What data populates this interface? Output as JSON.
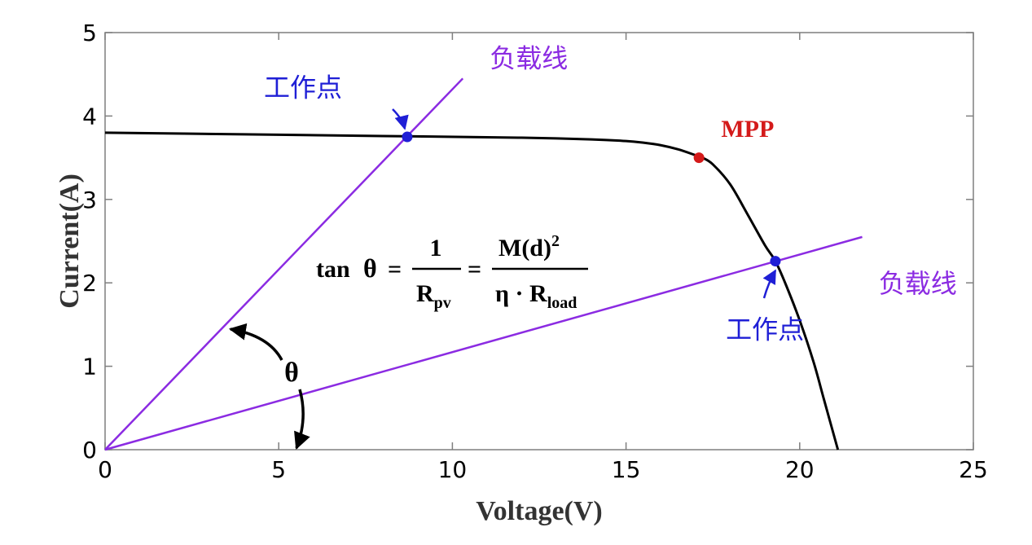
{
  "chart_data": {
    "type": "line",
    "xlabel": "Voltage(V)",
    "ylabel": "Current(A)",
    "xlim": [
      0,
      25
    ],
    "ylim": [
      0,
      5
    ],
    "xticks": [
      0,
      5,
      10,
      15,
      20,
      25
    ],
    "yticks": [
      0,
      1,
      2,
      3,
      4,
      5
    ],
    "grid": false,
    "colors": {
      "iv_curve": "#000000",
      "load_line": "#8b2be2",
      "operating_point": "#1f1fd6",
      "mpp": "#d41a1a",
      "text_blue": "#1f1fd6",
      "text_purple": "#8b2be2"
    },
    "series": [
      {
        "type": "curve",
        "color_key": "iv_curve",
        "x": [
          0,
          4,
          8,
          12,
          14,
          15,
          15.5,
          16,
          16.5,
          17,
          17.2,
          17.5,
          18,
          18.5,
          19,
          19.3,
          19.6,
          20,
          20.4,
          20.7,
          21.1
        ],
        "y": [
          3.8,
          3.78,
          3.76,
          3.74,
          3.72,
          3.7,
          3.68,
          3.65,
          3.6,
          3.53,
          3.5,
          3.42,
          3.18,
          2.82,
          2.45,
          2.26,
          1.98,
          1.55,
          1.05,
          0.6,
          0.0
        ]
      },
      {
        "type": "load-line",
        "label": "负载线",
        "color_key": "load_line",
        "x": [
          0,
          10.3
        ],
        "y": [
          0,
          4.45
        ]
      },
      {
        "type": "load-line",
        "label": "负载线",
        "color_key": "load_line",
        "x": [
          0,
          21.8
        ],
        "y": [
          0,
          2.55
        ]
      }
    ],
    "points": [
      {
        "name": "operating-point-1",
        "x": 8.7,
        "y": 3.75,
        "color_key": "operating_point"
      },
      {
        "name": "mpp-point",
        "x": 17.1,
        "y": 3.5,
        "color_key": "mpp"
      },
      {
        "name": "operating-point-2",
        "x": 19.3,
        "y": 2.26,
        "color_key": "operating_point"
      }
    ],
    "annotations": {
      "operating_point_1": {
        "text": "工作点",
        "x": 5.7,
        "y": 4.35,
        "color_key": "text_blue"
      },
      "operating_point_2": {
        "text": "工作点",
        "x": 19.0,
        "y": 1.45,
        "color_key": "text_blue"
      },
      "load_line_1": {
        "text": "负载线",
        "x": 12.2,
        "y": 4.7,
        "color_key": "text_purple"
      },
      "load_line_2": {
        "text": "负载线",
        "x": 23.4,
        "y": 2.0,
        "color_key": "text_purple"
      },
      "mpp": {
        "text": "MPP",
        "x": 18.5,
        "y": 3.85,
        "color_key": "mpp"
      },
      "theta": {
        "text": "θ"
      }
    },
    "formula": {
      "lhs": "tan",
      "theta": "θ",
      "eq": "=",
      "num1": "1",
      "den1_base": "R",
      "den1_sub": "pv",
      "num2_base": "M(d)",
      "num2_sup": "2",
      "den2_base": "η · R",
      "den2_sub": "load"
    }
  }
}
